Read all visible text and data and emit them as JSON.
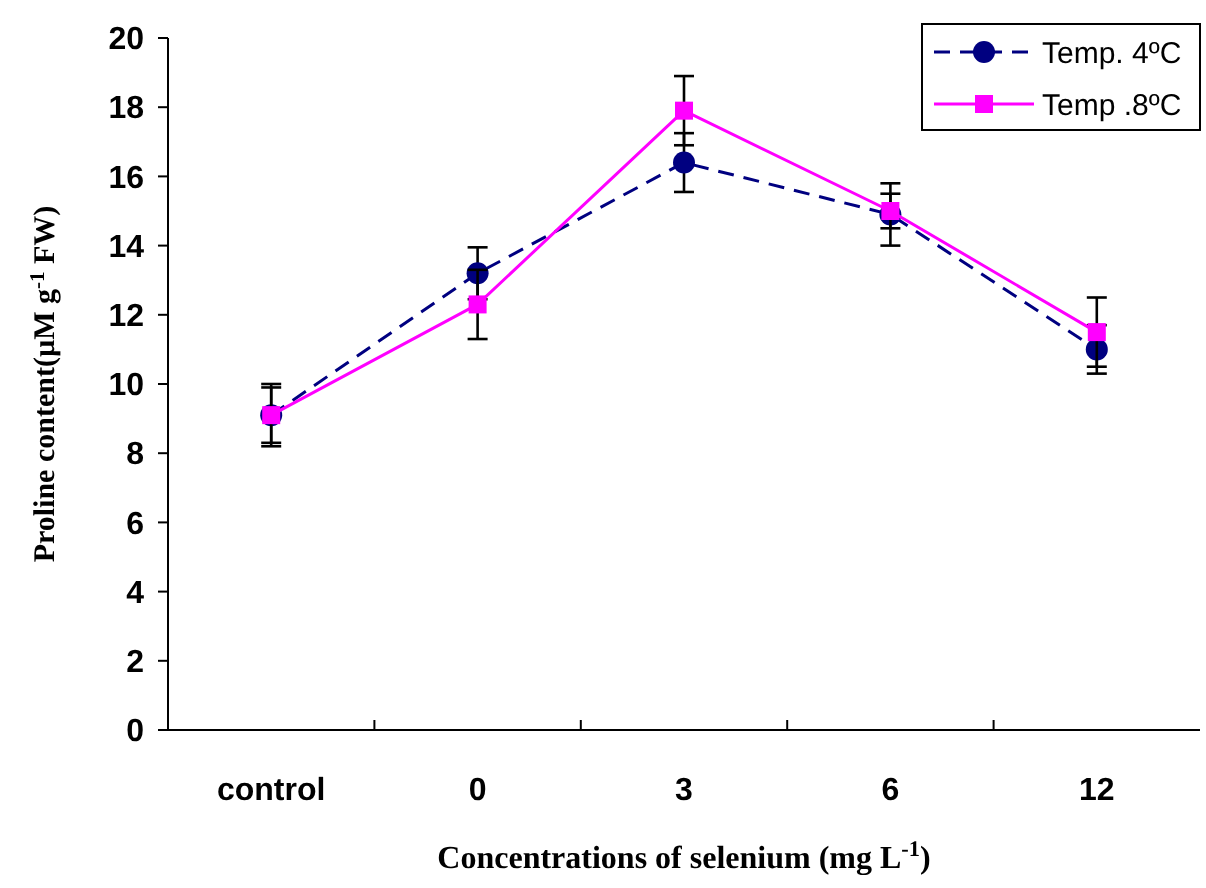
{
  "chart_data": {
    "type": "line",
    "xlabel": "Concentrations of selenium (mg L$^{-1}$)",
    "ylabel": "Proline content(µM g$^{-1}$ FW)",
    "categories": [
      "control",
      "0",
      "3",
      "6",
      "12"
    ],
    "ylim": [
      0,
      20
    ],
    "yticks": [
      0,
      2,
      4,
      6,
      8,
      10,
      12,
      14,
      16,
      18,
      20
    ],
    "grid": false,
    "legend": "top right",
    "series": [
      {
        "name": "Temp. 4ºC",
        "color": "#000080",
        "marker": "circle",
        "line_style": "dashed",
        "values": [
          9.1,
          13.2,
          16.4,
          14.9,
          11.0
        ],
        "errors": [
          0.8,
          0.75,
          0.85,
          0.9,
          0.7
        ]
      },
      {
        "name": "Temp .8ºC",
        "color": "#ff00ff",
        "marker": "square",
        "line_style": "solid",
        "values": [
          9.1,
          12.3,
          17.9,
          15.0,
          11.5
        ],
        "errors": [
          0.9,
          1.0,
          1.0,
          0.5,
          1.0
        ]
      }
    ]
  }
}
